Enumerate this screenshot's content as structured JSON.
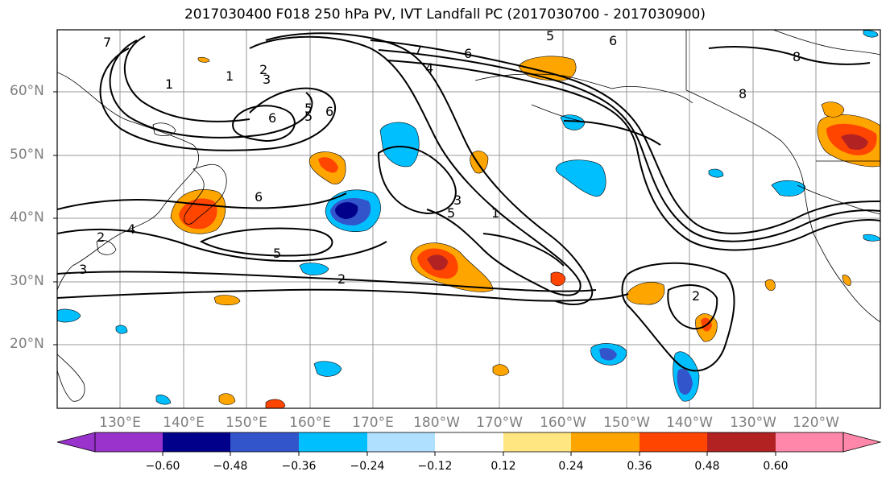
{
  "title": "2017030400 F018 250 hPa PV, IVT Landfall PC (2017030700 - 2017030900)",
  "lat_labels": [
    "60°N",
    "50°N",
    "40°N",
    "30°N",
    "20°N"
  ],
  "lon_labels": [
    "130°E",
    "140°E",
    "150°E",
    "160°E",
    "170°E",
    "180°W",
    "170°W",
    "160°W",
    "150°W",
    "140°W",
    "130°W",
    "120°W"
  ],
  "contour_labels": [
    "7",
    "1",
    "2",
    "3",
    "1",
    "5",
    "6",
    "6",
    "5",
    "6",
    "7",
    "4",
    "6",
    "8",
    "6",
    "5",
    "4",
    "3",
    "2",
    "3",
    "5",
    "5",
    "1",
    "2",
    "2",
    "8"
  ],
  "colorbar": {
    "ticks": [
      "−0.60",
      "−0.48",
      "−0.36",
      "−0.24",
      "−0.12",
      "0.12",
      "0.24",
      "0.36",
      "0.48",
      "0.60"
    ],
    "colors": [
      "#9933cc",
      "#00008b",
      "#3355cc",
      "#00bfff",
      "#b0e0ff",
      "#ffffff",
      "#ffe680",
      "#ffa500",
      "#ff4500",
      "#b22222",
      "#ff88aa"
    ]
  }
}
